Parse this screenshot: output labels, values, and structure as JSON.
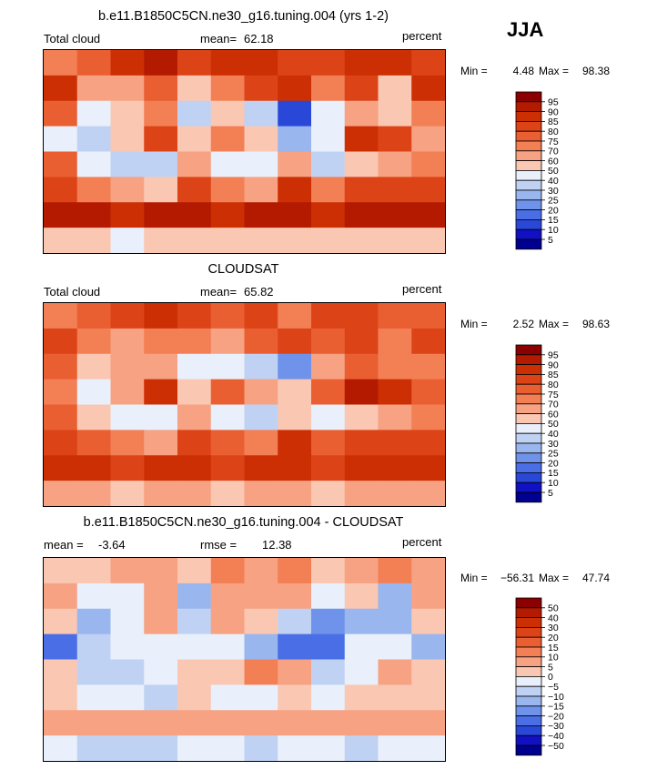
{
  "season": "JJA",
  "panels": [
    {
      "title": "b.e11.B1850C5CN.ne30_g16.tuning.004 (yrs 1-2)",
      "left_label": "Total cloud",
      "stat1_label": "mean=",
      "stat1_value": "62.18",
      "stat2_label": "",
      "stat2_value": "",
      "units": "percent",
      "min_label": "Min =",
      "min_value": "4.48",
      "max_label": "Max =",
      "max_value": "98.38",
      "colorbar_labels": [
        "95",
        "90",
        "85",
        "80",
        "75",
        "70",
        "60",
        "50",
        "40",
        "30",
        "25",
        "20",
        "15",
        "10",
        "5"
      ]
    },
    {
      "title": "CLOUDSAT",
      "left_label": "Total cloud",
      "stat1_label": "mean=",
      "stat1_value": "65.82",
      "stat2_label": "",
      "stat2_value": "",
      "units": "percent",
      "min_label": "Min =",
      "min_value": "2.52",
      "max_label": "Max =",
      "max_value": "98.63",
      "colorbar_labels": [
        "95",
        "90",
        "85",
        "80",
        "75",
        "70",
        "60",
        "50",
        "40",
        "30",
        "25",
        "20",
        "15",
        "10",
        "5"
      ]
    },
    {
      "title": "b.e11.B1850C5CN.ne30_g16.tuning.004 - CLOUDSAT",
      "left_label": "",
      "stat1_label": "mean =",
      "stat1_value": "-3.64",
      "stat2_label": "rmse =",
      "stat2_value": "12.38",
      "units": "percent",
      "min_label": "Min =",
      "min_value": "−56.31",
      "max_label": "Max =",
      "max_value": "47.74",
      "colorbar_labels": [
        "50",
        "40",
        "30",
        "20",
        "15",
        "10",
        "5",
        "0",
        "−5",
        "−10",
        "−15",
        "−20",
        "−30",
        "−40",
        "−50"
      ]
    }
  ],
  "colors": {
    "palette": [
      "#8b0000",
      "#b41a00",
      "#cd2f04",
      "#dc4418",
      "#ea5f32",
      "#f37f55",
      "#f6a283",
      "#fac7b2",
      "#e9f0fb",
      "#c0d2f3",
      "#9ab6ee",
      "#6f93ea",
      "#4a6ee6",
      "#2a48d8",
      "#1010c4",
      "#000090"
    ]
  },
  "chart_data": [
    {
      "type": "heatmap",
      "title": "b.e11.B1850C5CN.ne30_g16.tuning.004 (yrs 1-2)",
      "variable": "Total cloud",
      "units": "percent",
      "season": "JJA",
      "mean": 62.18,
      "min": 4.48,
      "max": 98.38,
      "contour_levels": [
        5,
        10,
        15,
        20,
        25,
        30,
        40,
        50,
        60,
        70,
        75,
        80,
        85,
        90,
        95
      ],
      "grid": {
        "lon_centers": [
          -165,
          -135,
          -105,
          -75,
          -45,
          -15,
          15,
          45,
          75,
          105,
          135,
          165
        ],
        "lat_centers": [
          75,
          52.5,
          30,
          7.5,
          -15,
          -37.5,
          -60,
          -82.5
        ],
        "rows_north_to_south_lon_from_180W": [
          [
            70,
            75,
            85,
            90,
            80,
            85,
            85,
            80,
            80,
            85,
            85,
            80
          ],
          [
            85,
            65,
            60,
            75,
            55,
            70,
            80,
            85,
            70,
            80,
            55,
            85
          ],
          [
            75,
            40,
            55,
            70,
            30,
            50,
            35,
            10,
            40,
            60,
            55,
            70
          ],
          [
            45,
            35,
            55,
            80,
            50,
            70,
            50,
            25,
            45,
            85,
            80,
            60
          ],
          [
            75,
            45,
            30,
            35,
            60,
            40,
            45,
            60,
            35,
            50,
            65,
            70
          ],
          [
            80,
            70,
            65,
            55,
            80,
            70,
            65,
            85,
            70,
            80,
            80,
            80
          ],
          [
            90,
            90,
            85,
            90,
            90,
            85,
            90,
            90,
            85,
            90,
            90,
            90
          ],
          [
            55,
            50,
            45,
            50,
            55,
            50,
            50,
            55,
            50,
            50,
            55,
            55
          ]
        ]
      }
    },
    {
      "type": "heatmap",
      "title": "CLOUDSAT",
      "variable": "Total cloud",
      "units": "percent",
      "season": "JJA",
      "mean": 65.82,
      "min": 2.52,
      "max": 98.63,
      "contour_levels": [
        5,
        10,
        15,
        20,
        25,
        30,
        40,
        50,
        60,
        70,
        75,
        80,
        85,
        90,
        95
      ],
      "grid": {
        "lon_centers": [
          -165,
          -135,
          -105,
          -75,
          -45,
          -15,
          15,
          45,
          75,
          105,
          135,
          165
        ],
        "lat_centers": [
          75,
          52.5,
          30,
          7.5,
          -15,
          -37.5,
          -60,
          -82.5
        ],
        "rows_north_to_south_lon_from_180W": [
          [
            70,
            75,
            80,
            85,
            80,
            75,
            80,
            70,
            80,
            80,
            75,
            75
          ],
          [
            80,
            70,
            65,
            70,
            70,
            65,
            75,
            80,
            75,
            80,
            70,
            80
          ],
          [
            75,
            55,
            60,
            65,
            40,
            45,
            35,
            20,
            60,
            75,
            70,
            70
          ],
          [
            70,
            45,
            60,
            85,
            55,
            75,
            65,
            55,
            75,
            90,
            85,
            75
          ],
          [
            75,
            55,
            40,
            40,
            60,
            40,
            35,
            55,
            45,
            55,
            60,
            70
          ],
          [
            80,
            75,
            70,
            65,
            80,
            75,
            70,
            85,
            75,
            80,
            80,
            80
          ],
          [
            85,
            85,
            80,
            85,
            85,
            80,
            85,
            85,
            80,
            85,
            85,
            85
          ],
          [
            60,
            60,
            55,
            60,
            60,
            55,
            60,
            60,
            55,
            60,
            60,
            60
          ]
        ]
      }
    },
    {
      "type": "heatmap",
      "title": "b.e11.B1850C5CN.ne30_g16.tuning.004 - CLOUDSAT",
      "units": "percent",
      "season": "JJA",
      "mean": -3.64,
      "rmse": 12.38,
      "min": -56.31,
      "max": 47.74,
      "contour_levels": [
        -50,
        -40,
        -30,
        -20,
        -15,
        -10,
        -5,
        0,
        5,
        10,
        15,
        20,
        30,
        40,
        50
      ],
      "grid": {
        "lon_centers": [
          -165,
          -135,
          -105,
          -75,
          -45,
          -15,
          15,
          45,
          75,
          105,
          135,
          165
        ],
        "lat_centers": [
          75,
          52.5,
          30,
          7.5,
          -15,
          -37.5,
          -60,
          -82.5
        ],
        "rows_north_to_south_lon_from_180W": [
          [
            0,
            0,
            5,
            5,
            0,
            10,
            5,
            10,
            0,
            5,
            10,
            5
          ],
          [
            5,
            -5,
            -5,
            5,
            -15,
            5,
            5,
            5,
            -5,
            0,
            -15,
            5
          ],
          [
            0,
            -15,
            -5,
            5,
            -10,
            5,
            0,
            -10,
            -20,
            -15,
            -15,
            0
          ],
          [
            -25,
            -10,
            -5,
            -5,
            -5,
            -5,
            -15,
            -30,
            -30,
            -5,
            -5,
            -15
          ],
          [
            0,
            -10,
            -10,
            -5,
            0,
            0,
            10,
            5,
            -10,
            -5,
            5,
            0
          ],
          [
            0,
            -5,
            -5,
            -10,
            0,
            -5,
            -5,
            0,
            -5,
            0,
            0,
            0
          ],
          [
            5,
            5,
            5,
            5,
            5,
            5,
            5,
            5,
            5,
            5,
            5,
            5
          ],
          [
            -5,
            -10,
            -10,
            -10,
            -5,
            -5,
            -10,
            -5,
            -5,
            -10,
            -5,
            -5
          ]
        ]
      }
    }
  ]
}
